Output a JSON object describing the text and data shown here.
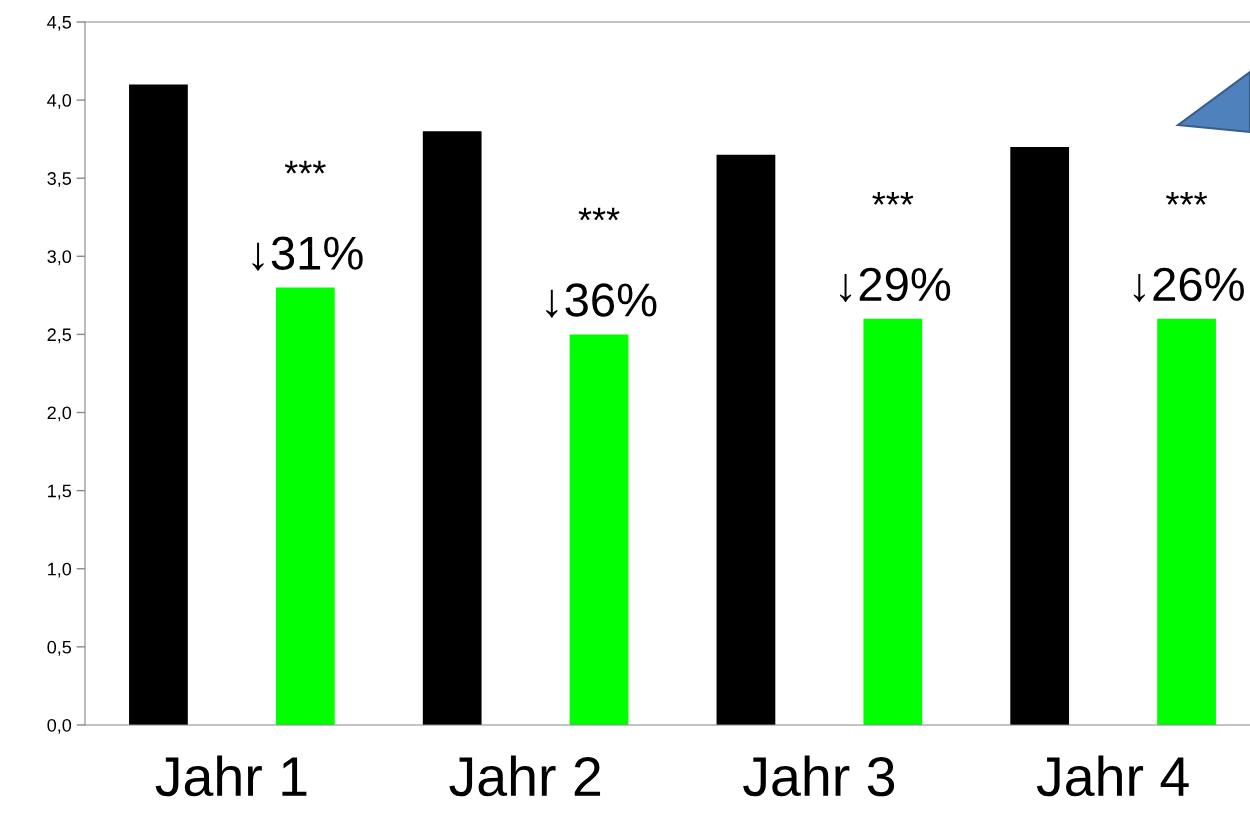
{
  "chart_data": {
    "type": "bar",
    "categories": [
      "Jahr 1",
      "Jahr 2",
      "Jahr 3",
      "Jahr 4"
    ],
    "series": [
      {
        "color": "#000000",
        "values": [
          4.1,
          3.8,
          3.65,
          3.7
        ]
      },
      {
        "color": "#00ff00",
        "values": [
          2.8,
          2.5,
          2.6,
          2.6
        ]
      }
    ],
    "ylim": [
      0,
      4.5
    ],
    "yticks": [
      {
        "value": 0,
        "label": "0,0"
      },
      {
        "value": 0.5,
        "label": "0,5"
      },
      {
        "value": 1,
        "label": "1,0"
      },
      {
        "value": 1.5,
        "label": "1,5"
      },
      {
        "value": 2,
        "label": "2,0"
      },
      {
        "value": 2.5,
        "label": "2,5"
      },
      {
        "value": 3,
        "label": "3,0"
      },
      {
        "value": 3.5,
        "label": "3,5"
      },
      {
        "value": 4,
        "label": "4,0"
      },
      {
        "value": 4.5,
        "label": "4,5"
      }
    ],
    "annotations": [
      "↓31%",
      "***",
      "↓36%",
      "***",
      "↓29%",
      "***",
      "↓26%",
      "***"
    ],
    "grid": false,
    "legend": false
  }
}
